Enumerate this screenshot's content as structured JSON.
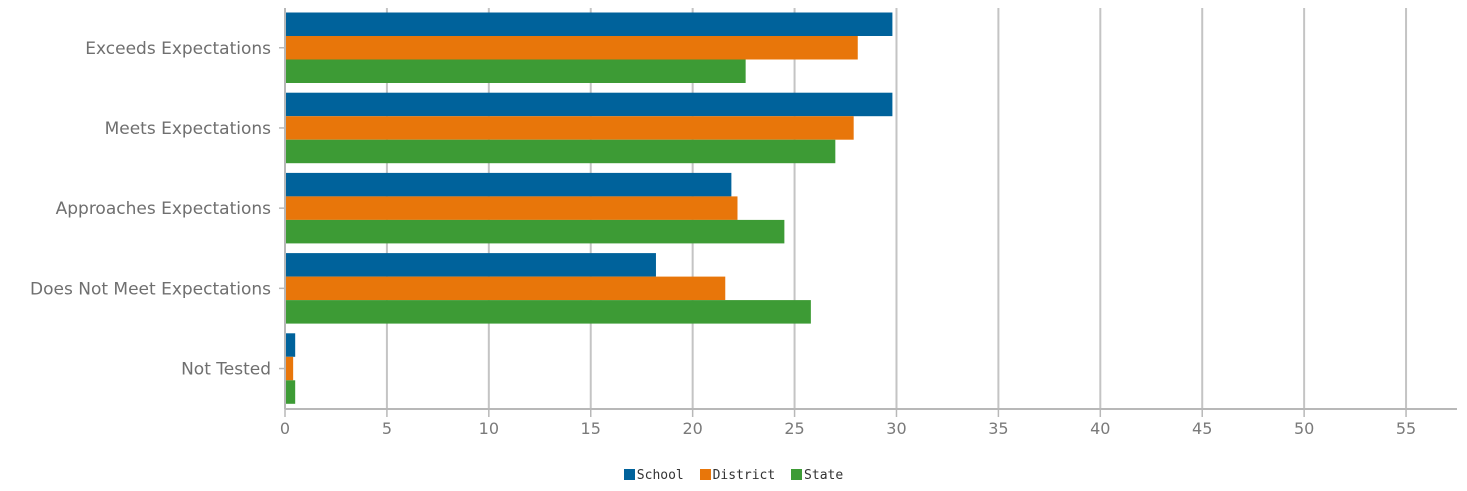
{
  "chart_data": {
    "type": "bar",
    "orientation": "horizontal",
    "categories": [
      "Exceeds Expectations",
      "Meets Expectations",
      "Approaches Expectations",
      "Does Not Meet Expectations",
      "Not Tested"
    ],
    "series": [
      {
        "name": "School",
        "color": "#00629b",
        "values": [
          29.8,
          29.8,
          21.9,
          18.2,
          0.5
        ]
      },
      {
        "name": "District",
        "color": "#e8760a",
        "values": [
          28.1,
          27.9,
          22.2,
          21.6,
          0.4
        ]
      },
      {
        "name": "State",
        "color": "#3d9b35",
        "values": [
          22.6,
          27.0,
          24.5,
          25.8,
          0.5
        ]
      }
    ],
    "xlim": [
      0,
      57.5
    ],
    "xticks": [
      0,
      5,
      10,
      15,
      20,
      25,
      30,
      35,
      40,
      45,
      50,
      55
    ],
    "grid": true,
    "legend_position": "bottom-center"
  }
}
